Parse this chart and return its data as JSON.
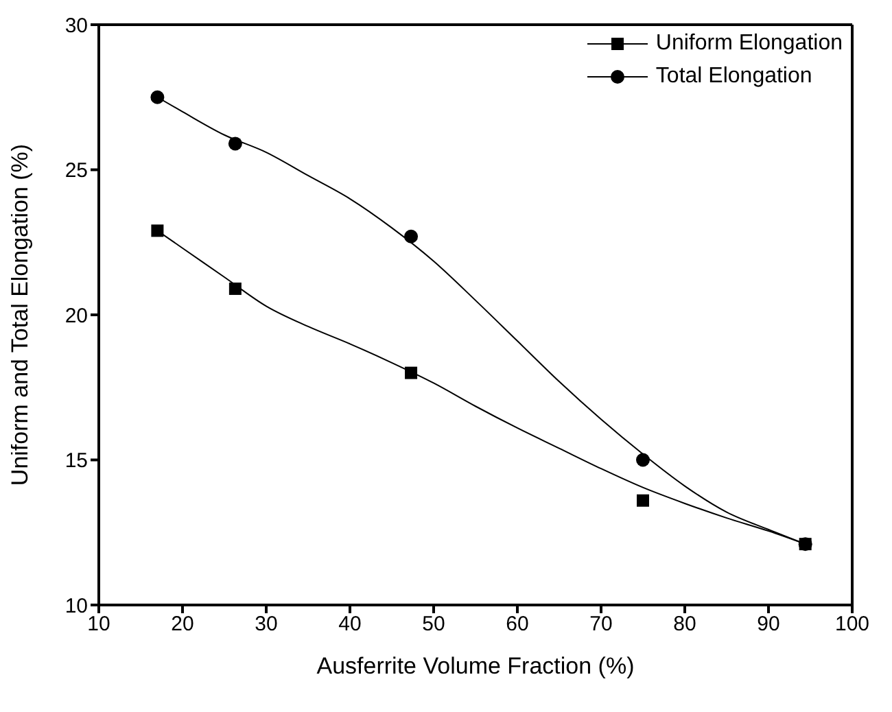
{
  "chart_data": {
    "type": "scatter",
    "xlabel": "Ausferrite Volume Fraction (%)",
    "ylabel": "Uniform and Total Elongation (%)",
    "xlim": [
      10,
      100
    ],
    "xticks": [
      10,
      20,
      30,
      40,
      50,
      60,
      70,
      80,
      90,
      100
    ],
    "ylim": [
      10,
      30
    ],
    "yticks": [
      10,
      15,
      20,
      25,
      30
    ],
    "grid": false,
    "legend": "top right",
    "series": [
      {
        "name": "Uniform Elongation",
        "marker": "square",
        "color": "#000000",
        "x": [
          17,
          26.3,
          47.3,
          75,
          94.4
        ],
        "values": [
          22.9,
          20.9,
          18.0,
          13.6,
          12.1
        ]
      },
      {
        "name": "Total Elongation",
        "marker": "circle",
        "color": "#000000",
        "x": [
          17,
          26.3,
          47.3,
          75,
          94.4
        ],
        "values": [
          27.5,
          25.9,
          22.7,
          15.0,
          12.1
        ]
      },
      {
        "type": "line",
        "color": "#000000",
        "marker": "none",
        "x": [
          17,
          20,
          25,
          30,
          35,
          40,
          45,
          50,
          55,
          60,
          65,
          70,
          75,
          80,
          85,
          90,
          94.4
        ],
        "values": [
          22.9,
          22.3,
          21.3,
          20.3,
          19.6,
          19.0,
          18.35,
          17.65,
          16.85,
          16.1,
          15.4,
          14.7,
          14.05,
          13.5,
          13.0,
          12.55,
          12.1
        ]
      },
      {
        "type": "line",
        "color": "#000000",
        "marker": "none",
        "x": [
          17,
          20,
          25,
          30,
          35,
          40,
          45,
          50,
          55,
          60,
          65,
          70,
          75,
          80,
          85,
          90,
          94.4
        ],
        "values": [
          27.5,
          27.0,
          26.2,
          25.6,
          24.8,
          24.0,
          23.0,
          21.85,
          20.5,
          19.1,
          17.7,
          16.4,
          15.2,
          14.1,
          13.2,
          12.6,
          12.1
        ]
      }
    ]
  }
}
